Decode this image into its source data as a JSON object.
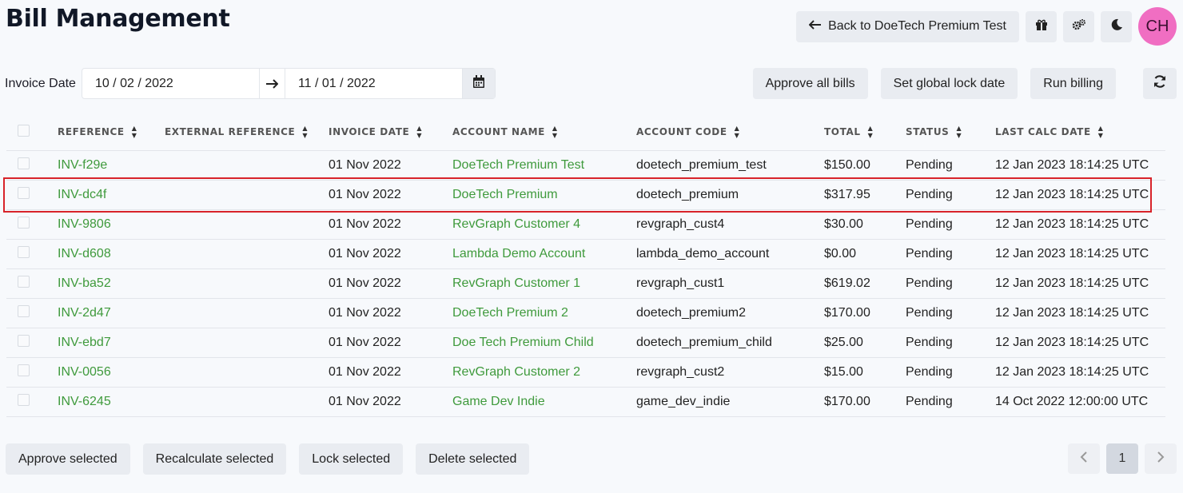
{
  "page": {
    "title": "Bill Management"
  },
  "header": {
    "back_label": "Back to DoeTech Premium Test",
    "avatar_initials": "CH",
    "avatar_color": "#f06ec2"
  },
  "filters": {
    "label": "Invoice Date",
    "start_date": "10 / 02 / 2022",
    "end_date": "11 / 01 / 2022"
  },
  "actions": {
    "approve_all": "Approve all bills",
    "set_lock": "Set global lock date",
    "run_billing": "Run billing"
  },
  "table": {
    "headers": [
      "REFERENCE",
      "EXTERNAL REFERENCE",
      "INVOICE DATE",
      "ACCOUNT NAME",
      "ACCOUNT CODE",
      "TOTAL",
      "STATUS",
      "LAST CALC DATE"
    ],
    "rows": [
      {
        "reference": "INV-f29e",
        "external_reference": "",
        "invoice_date": "01 Nov 2022",
        "account_name": "DoeTech Premium Test",
        "account_code": "doetech_premium_test",
        "total": "$150.00",
        "status": "Pending",
        "last_calc": "12 Jan 2023 18:14:25 UTC"
      },
      {
        "reference": "INV-dc4f",
        "external_reference": "",
        "invoice_date": "01 Nov 2022",
        "account_name": "DoeTech Premium",
        "account_code": "doetech_premium",
        "total": "$317.95",
        "status": "Pending",
        "last_calc": "12 Jan 2023 18:14:25 UTC"
      },
      {
        "reference": "INV-9806",
        "external_reference": "",
        "invoice_date": "01 Nov 2022",
        "account_name": "RevGraph Customer 4",
        "account_code": "revgraph_cust4",
        "total": "$30.00",
        "status": "Pending",
        "last_calc": "12 Jan 2023 18:14:25 UTC"
      },
      {
        "reference": "INV-d608",
        "external_reference": "",
        "invoice_date": "01 Nov 2022",
        "account_name": "Lambda Demo Account",
        "account_code": "lambda_demo_account",
        "total": "$0.00",
        "status": "Pending",
        "last_calc": "12 Jan 2023 18:14:25 UTC"
      },
      {
        "reference": "INV-ba52",
        "external_reference": "",
        "invoice_date": "01 Nov 2022",
        "account_name": "RevGraph Customer 1",
        "account_code": "revgraph_cust1",
        "total": "$619.02",
        "status": "Pending",
        "last_calc": "12 Jan 2023 18:14:25 UTC"
      },
      {
        "reference": "INV-2d47",
        "external_reference": "",
        "invoice_date": "01 Nov 2022",
        "account_name": "DoeTech Premium 2",
        "account_code": "doetech_premium2",
        "total": "$170.00",
        "status": "Pending",
        "last_calc": "12 Jan 2023 18:14:25 UTC"
      },
      {
        "reference": "INV-ebd7",
        "external_reference": "",
        "invoice_date": "01 Nov 2022",
        "account_name": "Doe Tech Premium Child",
        "account_code": "doetech_premium_child",
        "total": "$25.00",
        "status": "Pending",
        "last_calc": "12 Jan 2023 18:14:25 UTC"
      },
      {
        "reference": "INV-0056",
        "external_reference": "",
        "invoice_date": "01 Nov 2022",
        "account_name": "RevGraph Customer 2",
        "account_code": "revgraph_cust2",
        "total": "$15.00",
        "status": "Pending",
        "last_calc": "12 Jan 2023 18:14:25 UTC"
      },
      {
        "reference": "INV-6245",
        "external_reference": "",
        "invoice_date": "01 Nov 2022",
        "account_name": "Game Dev Indie",
        "account_code": "game_dev_indie",
        "total": "$170.00",
        "status": "Pending",
        "last_calc": "14 Oct 2022 12:00:00 UTC"
      }
    ]
  },
  "footer": {
    "approve_selected": "Approve selected",
    "recalculate_selected": "Recalculate selected",
    "lock_selected": "Lock selected",
    "delete_selected": "Delete selected"
  },
  "pagination": {
    "current_page": "1",
    "prev_icon": "chevron-left-icon",
    "next_icon": "chevron-right-icon"
  },
  "colors": {
    "link": "#3f9a3c",
    "highlight": "#d8232a",
    "background": "#f7f9fc"
  }
}
